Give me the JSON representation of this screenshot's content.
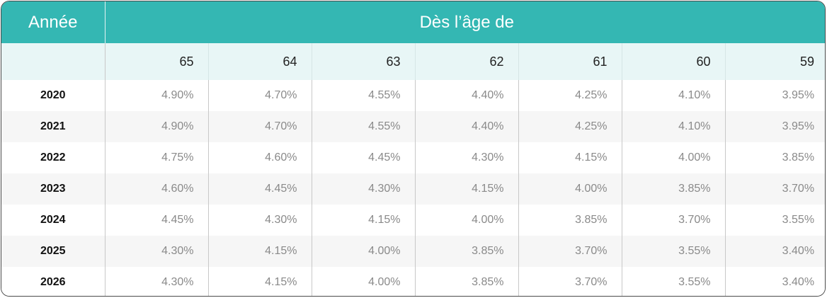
{
  "header": {
    "year_label": "Année",
    "age_label": "Dès l’âge de"
  },
  "ages": [
    "65",
    "64",
    "63",
    "62",
    "61",
    "60",
    "59"
  ],
  "rows": [
    {
      "year": "2020",
      "values": [
        "4.90%",
        "4.70%",
        "4.55%",
        "4.40%",
        "4.25%",
        "4.10%",
        "3.95%"
      ]
    },
    {
      "year": "2021",
      "values": [
        "4.90%",
        "4.70%",
        "4.55%",
        "4.40%",
        "4.25%",
        "4.10%",
        "3.95%"
      ]
    },
    {
      "year": "2022",
      "values": [
        "4.75%",
        "4.60%",
        "4.45%",
        "4.30%",
        "4.15%",
        "4.00%",
        "3.85%"
      ]
    },
    {
      "year": "2023",
      "values": [
        "4.60%",
        "4.45%",
        "4.30%",
        "4.15%",
        "4.00%",
        "3.85%",
        "3.70%"
      ]
    },
    {
      "year": "2024",
      "values": [
        "4.45%",
        "4.30%",
        "4.15%",
        "4.00%",
        "3.85%",
        "3.70%",
        "3.55%"
      ]
    },
    {
      "year": "2025",
      "values": [
        "4.30%",
        "4.15%",
        "4.00%",
        "3.85%",
        "3.70%",
        "3.55%",
        "3.40%"
      ]
    },
    {
      "year": "2026",
      "values": [
        "4.30%",
        "4.15%",
        "4.00%",
        "3.85%",
        "3.70%",
        "3.55%",
        "3.40%"
      ]
    }
  ],
  "colors": {
    "header_bg": "#34b7b3",
    "subheader_bg": "#e8f6f6",
    "stripe_bg": "#f6f6f6"
  }
}
